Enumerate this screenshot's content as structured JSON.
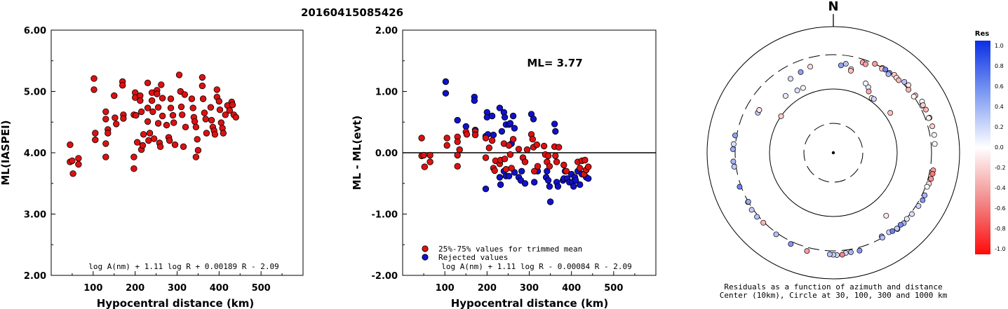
{
  "title": "20160415085426",
  "colors": {
    "red": "#dd1111",
    "blue": "#1111cc",
    "black": "#000000"
  },
  "chart_data": [
    {
      "type": "scatter",
      "xlabel": "Hypocentral distance (km)",
      "ylabel": "ML(IASPEI)",
      "xlim": [
        0,
        600
      ],
      "ylim": [
        2.0,
        6.0
      ],
      "xticks": [
        "100",
        "200",
        "300",
        "400",
        "500"
      ],
      "yticks": [
        "2.00",
        "3.00",
        "4.00",
        "5.00",
        "6.00"
      ],
      "formula": "log A(nm) + 1.11 log R + 0.00189 R - 2.09",
      "points": [
        [
          45,
          4.13
        ],
        [
          45,
          3.85
        ],
        [
          50,
          3.87
        ],
        [
          52,
          3.66
        ],
        [
          65,
          3.91
        ],
        [
          65,
          3.81
        ],
        [
          102,
          5.21
        ],
        [
          102,
          5.03
        ],
        [
          105,
          4.32
        ],
        [
          105,
          4.21
        ],
        [
          130,
          4.67
        ],
        [
          130,
          4.55
        ],
        [
          130,
          4.15
        ],
        [
          130,
          3.93
        ],
        [
          135,
          4.38
        ],
        [
          135,
          4.32
        ],
        [
          150,
          4.93
        ],
        [
          152,
          4.57
        ],
        [
          155,
          4.47
        ],
        [
          170,
          5.16
        ],
        [
          170,
          5.1
        ],
        [
          172,
          4.62
        ],
        [
          172,
          4.56
        ],
        [
          197,
          4.62
        ],
        [
          197,
          3.93
        ],
        [
          197,
          3.74
        ],
        [
          200,
          4.98
        ],
        [
          200,
          4.9
        ],
        [
          202,
          4.61
        ],
        [
          205,
          4.17
        ],
        [
          212,
          4.93
        ],
        [
          212,
          4.85
        ],
        [
          215,
          4.67
        ],
        [
          215,
          4.05
        ],
        [
          218,
          4.12
        ],
        [
          220,
          4.3
        ],
        [
          230,
          5.14
        ],
        [
          230,
          4.73
        ],
        [
          230,
          4.51
        ],
        [
          232,
          4.2
        ],
        [
          235,
          4.32
        ],
        [
          240,
          4.98
        ],
        [
          240,
          4.85
        ],
        [
          242,
          4.67
        ],
        [
          245,
          4.23
        ],
        [
          252,
          5.02
        ],
        [
          252,
          4.96
        ],
        [
          255,
          4.74
        ],
        [
          255,
          4.48
        ],
        [
          258,
          4.16
        ],
        [
          260,
          4.1
        ],
        [
          262,
          5.11
        ],
        [
          265,
          4.89
        ],
        [
          265,
          4.6
        ],
        [
          275,
          4.45
        ],
        [
          280,
          4.25
        ],
        [
          282,
          4.2
        ],
        [
          285,
          4.88
        ],
        [
          285,
          4.73
        ],
        [
          290,
          4.61
        ],
        [
          292,
          4.49
        ],
        [
          295,
          4.13
        ],
        [
          305,
          5.27
        ],
        [
          308,
          5.0
        ],
        [
          310,
          4.75
        ],
        [
          312,
          4.62
        ],
        [
          315,
          4.1
        ],
        [
          318,
          4.95
        ],
        [
          320,
          4.42
        ],
        [
          335,
          4.88
        ],
        [
          338,
          4.73
        ],
        [
          340,
          4.58
        ],
        [
          342,
          4.51
        ],
        [
          345,
          4.42
        ],
        [
          348,
          4.22
        ],
        [
          350,
          4.04
        ],
        [
          345,
          3.93
        ],
        [
          360,
          5.23
        ],
        [
          360,
          5.09
        ],
        [
          362,
          4.88
        ],
        [
          365,
          4.65
        ],
        [
          368,
          4.55
        ],
        [
          370,
          4.32
        ],
        [
          380,
          4.74
        ],
        [
          382,
          4.53
        ],
        [
          385,
          4.42
        ],
        [
          388,
          4.36
        ],
        [
          390,
          4.3
        ],
        [
          395,
          5.03
        ],
        [
          395,
          4.91
        ],
        [
          400,
          4.84
        ],
        [
          402,
          4.7
        ],
        [
          405,
          4.49
        ],
        [
          408,
          4.4
        ],
        [
          410,
          4.32
        ],
        [
          415,
          4.62
        ],
        [
          420,
          4.77
        ],
        [
          425,
          4.69
        ],
        [
          430,
          4.83
        ],
        [
          432,
          4.78
        ],
        [
          435,
          4.62
        ],
        [
          440,
          4.58
        ]
      ]
    },
    {
      "type": "scatter",
      "xlabel": "Hypocentral distance (km)",
      "ylabel": "ML - ML(evt)",
      "xlim": [
        0,
        600
      ],
      "ylim": [
        -2.0,
        2.0
      ],
      "xticks": [
        "100",
        "200",
        "300",
        "400",
        "500"
      ],
      "yticks": [
        "-2.00",
        "-1.00",
        "0.00",
        "1.00",
        "2.00"
      ],
      "annotation": "ML= 3.77",
      "legend": [
        {
          "label": "25%-75% values for trimmed mean",
          "color": "red"
        },
        {
          "label": "Rejected values",
          "color": "blue"
        }
      ],
      "formula": "log A(nm) + 1.11 log R - 0.00084 R - 2.09",
      "points_red": [
        [
          45,
          0.24
        ],
        [
          45,
          -0.05
        ],
        [
          50,
          -0.04
        ],
        [
          52,
          -0.23
        ],
        [
          65,
          -0.04
        ],
        [
          65,
          -0.15
        ],
        [
          105,
          0.24
        ],
        [
          105,
          0.12
        ],
        [
          130,
          0.26
        ],
        [
          130,
          0.18
        ],
        [
          130,
          -0.04
        ],
        [
          130,
          -0.22
        ],
        [
          135,
          0.05
        ],
        [
          150,
          0.34
        ],
        [
          152,
          0.3
        ],
        [
          172,
          0.35
        ],
        [
          172,
          0.29
        ],
        [
          197,
          0.24
        ],
        [
          197,
          -0.08
        ],
        [
          205,
          0.08
        ],
        [
          212,
          0.2
        ],
        [
          215,
          -0.25
        ],
        [
          218,
          -0.29
        ],
        [
          220,
          -0.13
        ],
        [
          230,
          -0.18
        ],
        [
          232,
          -0.12
        ],
        [
          240,
          0.15
        ],
        [
          242,
          -0.1
        ],
        [
          245,
          -0.27
        ],
        [
          252,
          0.12
        ],
        [
          255,
          -0.03
        ],
        [
          258,
          -0.25
        ],
        [
          262,
          0.22
        ],
        [
          275,
          0.06
        ],
        [
          285,
          -0.08
        ],
        [
          290,
          -0.15
        ],
        [
          295,
          0.05
        ],
        [
          305,
          0.3
        ],
        [
          308,
          0.22
        ],
        [
          310,
          0.09
        ],
        [
          312,
          -0.3
        ],
        [
          318,
          0.13
        ],
        [
          320,
          -0.22
        ],
        [
          335,
          0.11
        ],
        [
          338,
          -0.03
        ],
        [
          342,
          -0.15
        ],
        [
          345,
          -0.05
        ],
        [
          348,
          -0.22
        ],
        [
          360,
          0.1
        ],
        [
          362,
          -0.05
        ],
        [
          365,
          -0.15
        ],
        [
          370,
          0.09
        ],
        [
          382,
          -0.2
        ],
        [
          388,
          -0.3
        ],
        [
          415,
          -0.15
        ],
        [
          420,
          -0.25
        ],
        [
          425,
          -0.13
        ],
        [
          430,
          -0.35
        ],
        [
          432,
          -0.12
        ],
        [
          435,
          -0.28
        ],
        [
          440,
          -0.23
        ]
      ],
      "points_blue": [
        [
          102,
          1.16
        ],
        [
          102,
          0.97
        ],
        [
          130,
          0.53
        ],
        [
          150,
          0.43
        ],
        [
          170,
          0.91
        ],
        [
          170,
          0.85
        ],
        [
          172,
          0.37
        ],
        [
          197,
          0.27
        ],
        [
          197,
          -0.59
        ],
        [
          200,
          0.66
        ],
        [
          200,
          0.58
        ],
        [
          202,
          0.3
        ],
        [
          212,
          0.6
        ],
        [
          215,
          0.29
        ],
        [
          230,
          0.73
        ],
        [
          235,
          0.35
        ],
        [
          240,
          0.66
        ],
        [
          242,
          0.58
        ],
        [
          245,
          0.46
        ],
        [
          252,
          0.46
        ],
        [
          255,
          0.48
        ],
        [
          258,
          0.15
        ],
        [
          262,
          0.6
        ],
        [
          265,
          0.4
        ],
        [
          230,
          -0.4
        ],
        [
          232,
          -0.52
        ],
        [
          240,
          -0.3
        ],
        [
          245,
          -0.38
        ],
        [
          252,
          -0.38
        ],
        [
          265,
          -0.32
        ],
        [
          275,
          -0.4
        ],
        [
          280,
          -0.45
        ],
        [
          282,
          -0.3
        ],
        [
          290,
          -0.5
        ],
        [
          305,
          0.63
        ],
        [
          310,
          0.55
        ],
        [
          312,
          -0.48
        ],
        [
          320,
          -0.3
        ],
        [
          340,
          -0.4
        ],
        [
          342,
          -0.3
        ],
        [
          345,
          -0.45
        ],
        [
          348,
          -0.55
        ],
        [
          350,
          -0.8
        ],
        [
          360,
          0.47
        ],
        [
          362,
          0.35
        ],
        [
          365,
          -0.48
        ],
        [
          368,
          -0.55
        ],
        [
          380,
          -0.45
        ],
        [
          382,
          -0.42
        ],
        [
          385,
          -0.3
        ],
        [
          390,
          -0.42
        ],
        [
          395,
          -0.48
        ],
        [
          400,
          -0.35
        ],
        [
          402,
          -0.48
        ],
        [
          405,
          -0.55
        ],
        [
          408,
          -0.4
        ],
        [
          410,
          -0.45
        ],
        [
          415,
          -0.3
        ],
        [
          420,
          -0.52
        ],
        [
          425,
          -0.35
        ],
        [
          435,
          -0.4
        ],
        [
          440,
          -0.42
        ]
      ]
    },
    {
      "type": "polar-scatter",
      "north_label": "N",
      "caption_line1": "Residuals as a function of azimuth and distance",
      "caption_line2": "Center (10km), Circle at 30, 100, 300 and 1000 km",
      "colorbar_title": "Res",
      "colorbar_ticks": [
        "1.0",
        "0.8",
        "0.6",
        "0.4",
        "0.2",
        "0.0",
        "-0.2",
        "-0.4",
        "-0.6",
        "-0.8",
        "-1.0"
      ],
      "rings_km": [
        30,
        100,
        300,
        1000
      ],
      "points": [
        [
          5,
          215,
          0.45
        ],
        [
          8,
          230,
          0.3
        ],
        [
          12,
          200,
          -0.1
        ],
        [
          330,
          200,
          0.15
        ],
        [
          338,
          210,
          0.45
        ],
        [
          345,
          225,
          -0.15
        ],
        [
          12,
          190,
          -0.25
        ],
        [
          18,
          270,
          -0.35
        ],
        [
          20,
          265,
          -0.4
        ],
        [
          25,
          300,
          -0.4
        ],
        [
          30,
          300,
          -0.35
        ],
        [
          30,
          290,
          -0.25
        ],
        [
          32,
          300,
          0.6
        ],
        [
          35,
          295,
          0.55
        ],
        [
          35,
          280,
          0.35
        ],
        [
          38,
          310,
          -0.2
        ],
        [
          40,
          300,
          -0.15
        ],
        [
          42,
          295,
          -0.3
        ],
        [
          45,
          330,
          0.3
        ],
        [
          48,
          340,
          -0.1
        ],
        [
          50,
          300,
          -0.3
        ],
        [
          55,
          325,
          -0.25
        ],
        [
          55,
          300,
          -0.05
        ],
        [
          60,
          360,
          0.0
        ],
        [
          62,
          330,
          0.1
        ],
        [
          65,
          355,
          -0.3
        ],
        [
          62,
          345,
          -0.2
        ],
        [
          70,
          360,
          -0.4
        ],
        [
          70,
          345,
          -0.05
        ],
        [
          75,
          360,
          -0.2
        ],
        [
          80,
          360,
          0.05
        ],
        [
          85,
          350,
          0.0
        ],
        [
          100,
          345,
          -0.4
        ],
        [
          102,
          345,
          -0.55
        ],
        [
          105,
          340,
          -0.45
        ],
        [
          108,
          330,
          -0.15
        ],
        [
          110,
          320,
          0.0
        ],
        [
          115,
          335,
          0.35
        ],
        [
          118,
          340,
          0.5
        ],
        [
          122,
          330,
          0.2
        ],
        [
          128,
          320,
          0.15
        ],
        [
          132,
          310,
          0.1
        ],
        [
          135,
          320,
          0.35
        ],
        [
          137,
          305,
          0.55
        ],
        [
          140,
          320,
          0.45
        ],
        [
          140,
          310,
          0.25
        ],
        [
          145,
          290,
          0.2
        ],
        [
          150,
          285,
          0.4
        ],
        [
          150,
          300,
          0.3
        ],
        [
          143,
          300,
          0.6
        ],
        [
          165,
          345,
          0.5
        ],
        [
          170,
          340,
          0.35
        ],
        [
          173,
          340,
          0.2
        ],
        [
          175,
          360,
          -0.5
        ],
        [
          178,
          360,
          0.2
        ],
        [
          180,
          355,
          0.25
        ],
        [
          182,
          350,
          0.3
        ],
        [
          195,
          350,
          -0.4
        ],
        [
          205,
          335,
          0.5
        ],
        [
          215,
          320,
          0.3
        ],
        [
          225,
          310,
          -0.3
        ],
        [
          230,
          320,
          0.3
        ],
        [
          235,
          320,
          0.25
        ],
        [
          240,
          305,
          0.45
        ],
        [
          240,
          300,
          0.4
        ],
        [
          250,
          320,
          0.6
        ],
        [
          262,
          325,
          0.25
        ],
        [
          265,
          330,
          0.35
        ],
        [
          272,
          330,
          0.4
        ],
        [
          275,
          325,
          0.15
        ],
        [
          280,
          320,
          0.45
        ],
        [
          298,
          200,
          0.25
        ],
        [
          300,
          200,
          0.4
        ],
        [
          300,
          200,
          -0.1
        ],
        [
          28,
          140,
          0.1
        ],
        [
          30,
          125,
          -0.35
        ],
        [
          140,
          180,
          -0.1
        ],
        [
          305,
          100,
          -0.2
        ],
        [
          35,
          110,
          -0.1
        ],
        [
          37,
          112,
          0.2
        ],
        [
          25,
          150,
          0.05
        ],
        [
          330,
          130,
          0.15
        ],
        [
          335,
          128,
          -0.05
        ],
        [
          320,
          140,
          0.1
        ],
        [
          55,
          120,
          -0.25
        ]
      ]
    }
  ]
}
